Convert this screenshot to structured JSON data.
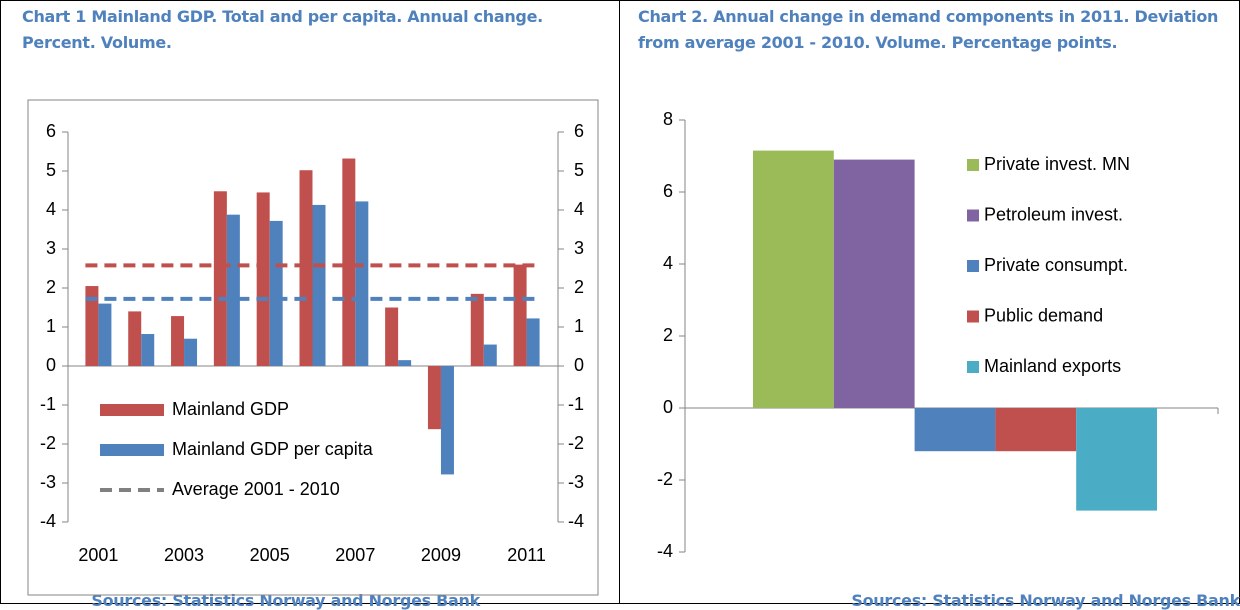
{
  "chart_data": [
    {
      "type": "bar",
      "title": "Chart 1 Mainland GDP. Total and per capita. Annual change. Percent. Volume.",
      "source": "Sources: Statistics Norway and Norges Bank",
      "categories": [
        "2001",
        null,
        "2003",
        null,
        "2005",
        null,
        "2007",
        null,
        "2009",
        null,
        "2011"
      ],
      "series": [
        {
          "name": "Mainland GDP",
          "color": "#c0504d",
          "values": [
            2.05,
            1.4,
            1.28,
            4.48,
            4.45,
            5.02,
            5.32,
            1.5,
            -1.62,
            1.85,
            2.6
          ]
        },
        {
          "name": "Mainland GDP per capita",
          "color": "#4f81bd",
          "values": [
            1.6,
            0.82,
            0.7,
            3.88,
            3.72,
            4.13,
            4.22,
            0.15,
            -2.78,
            0.55,
            1.22
          ]
        }
      ],
      "reference_lines": {
        "name": "Average 2001 - 2010",
        "color": "#808080",
        "lines": [
          {
            "value": 2.58,
            "color": "#c0504d"
          },
          {
            "value": 1.72,
            "color": "#4f81bd"
          }
        ]
      },
      "ylim": [
        -4,
        6
      ],
      "yticks": [
        -4,
        -3,
        -2,
        -1,
        0,
        1,
        2,
        3,
        4,
        5,
        6
      ],
      "y2lim": [
        -4,
        6
      ],
      "y2ticks": [
        -4,
        -3,
        -2,
        -1,
        0,
        1,
        2,
        3,
        4,
        5,
        6
      ]
    },
    {
      "type": "bar",
      "title": "Chart 2. Annual change in demand components in 2011. Deviation from average 2001 - 2010. Volume. Percentage points.",
      "source": "Sources: Statistics Norway and Norges Bank",
      "series": [
        {
          "name": "Private invest. MN",
          "color": "#9bbb59",
          "values": [
            7.15
          ]
        },
        {
          "name": "Petroleum invest.",
          "color": "#8064a2",
          "values": [
            6.9
          ]
        },
        {
          "name": "Private consumpt.",
          "color": "#4f81bd",
          "values": [
            -1.2
          ]
        },
        {
          "name": "Public demand",
          "color": "#c0504d",
          "values": [
            -1.2
          ]
        },
        {
          "name": "Mainland exports",
          "color": "#4bacc6",
          "values": [
            -2.85
          ]
        }
      ],
      "ylim": [
        -4,
        8
      ],
      "yticks": [
        -4,
        -2,
        0,
        2,
        4,
        6,
        8
      ]
    }
  ]
}
